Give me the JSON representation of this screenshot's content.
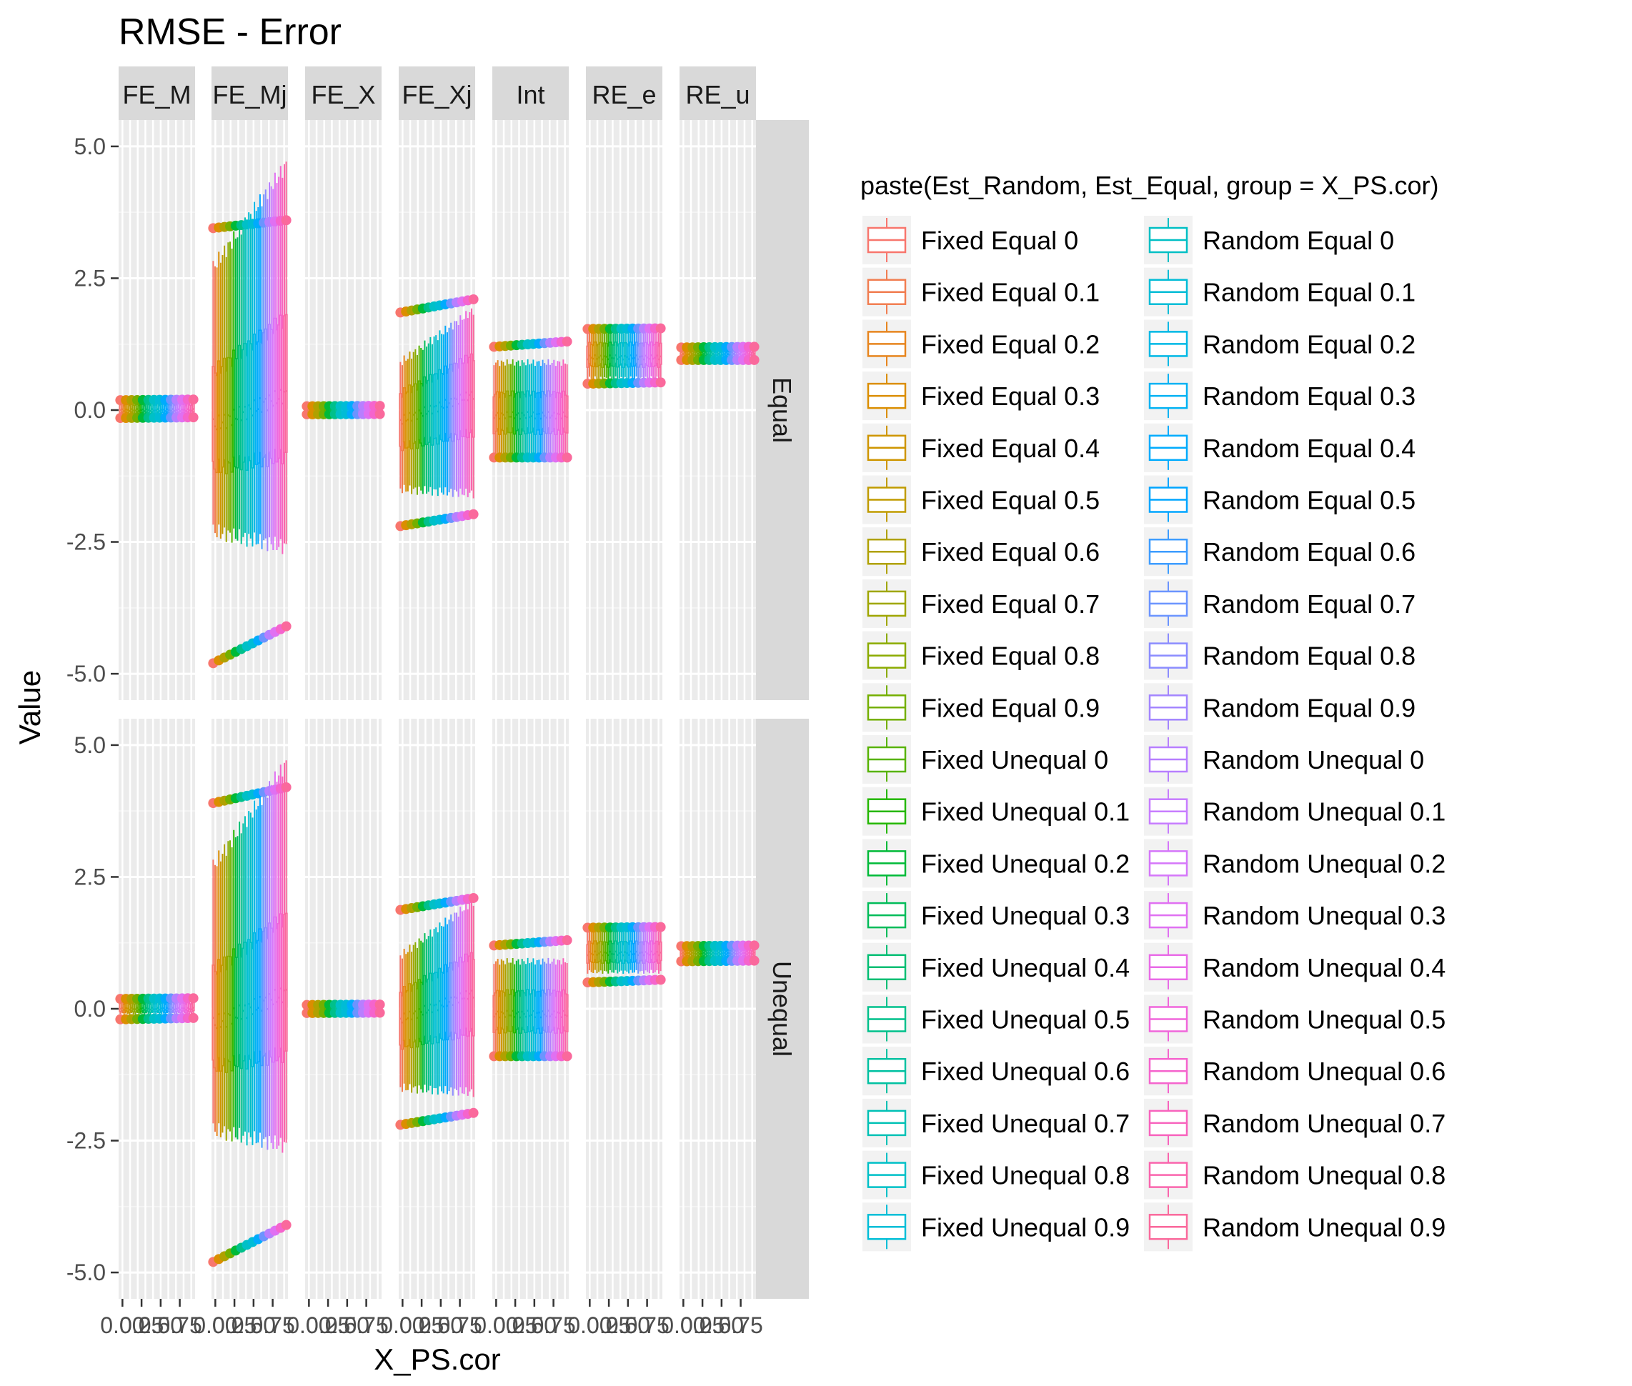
{
  "chart_data": {
    "type": "boxplot",
    "title": "RMSE - Error",
    "xlabel": "X_PS.cor",
    "ylabel": "Value",
    "ylim": [
      -5.5,
      5.5
    ],
    "y_ticks": [
      {
        "value": 5.0,
        "label": "5.0"
      },
      {
        "value": 2.5,
        "label": "2.5"
      },
      {
        "value": 0.0,
        "label": "0.0"
      },
      {
        "value": -2.5,
        "label": "-2.5"
      },
      {
        "value": -5.0,
        "label": "-5.0"
      }
    ],
    "x_tick_labels": [
      "0.00",
      "0.25",
      "0.50",
      "0.75"
    ],
    "x_values": [
      0.0,
      0.1,
      0.2,
      0.3,
      0.4,
      0.5,
      0.6,
      0.7,
      0.8,
      0.9
    ],
    "x_domain": [
      -0.05,
      0.95
    ],
    "grid": true,
    "legend_position": "right",
    "facet_columns": [
      "FE_M",
      "FE_Mj",
      "FE_X",
      "FE_Xj",
      "Int",
      "RE_e",
      "RE_u"
    ],
    "facet_rows": [
      "Equal",
      "Unequal"
    ],
    "legend": {
      "title": "paste(Est_Random, Est_Equal, group = X_PS.cor)",
      "entries": [
        {
          "label": "Fixed Equal 0",
          "color": "#F8766D"
        },
        {
          "label": "Fixed Equal 0.1",
          "color": "#F17D50"
        },
        {
          "label": "Fixed Equal 0.2",
          "color": "#E7851E"
        },
        {
          "label": "Fixed Equal 0.3",
          "color": "#DB8E00"
        },
        {
          "label": "Fixed Equal 0.4",
          "color": "#CE9500"
        },
        {
          "label": "Fixed Equal 0.5",
          "color": "#C09B00"
        },
        {
          "label": "Fixed Equal 0.6",
          "color": "#B0A100"
        },
        {
          "label": "Fixed Equal 0.7",
          "color": "#9FA600"
        },
        {
          "label": "Fixed Equal 0.8",
          "color": "#8BAB00"
        },
        {
          "label": "Fixed Equal 0.9",
          "color": "#74AF00"
        },
        {
          "label": "Fixed Unequal 0",
          "color": "#57B300"
        },
        {
          "label": "Fixed Unequal 0.1",
          "color": "#24B700"
        },
        {
          "label": "Fixed Unequal 0.2",
          "color": "#00BA38"
        },
        {
          "label": "Fixed Unequal 0.3",
          "color": "#00BC59"
        },
        {
          "label": "Fixed Unequal 0.4",
          "color": "#00BE73"
        },
        {
          "label": "Fixed Unequal 0.5",
          "color": "#00C08B"
        },
        {
          "label": "Fixed Unequal 0.6",
          "color": "#00C1A1"
        },
        {
          "label": "Fixed Unequal 0.7",
          "color": "#00C1B5"
        },
        {
          "label": "Fixed Unequal 0.8",
          "color": "#00C0C7"
        },
        {
          "label": "Fixed Unequal 0.9",
          "color": "#00BED7"
        },
        {
          "label": "Random Equal 0",
          "color": "#00BFC4"
        },
        {
          "label": "Random Equal 0.1",
          "color": "#00BCD6"
        },
        {
          "label": "Random Equal 0.2",
          "color": "#00B8E5"
        },
        {
          "label": "Random Equal 0.3",
          "color": "#00B2F3"
        },
        {
          "label": "Random Equal 0.4",
          "color": "#00ABFD"
        },
        {
          "label": "Random Equal 0.5",
          "color": "#00A5FF"
        },
        {
          "label": "Random Equal 0.6",
          "color": "#3D9CFF"
        },
        {
          "label": "Random Equal 0.7",
          "color": "#6B94FF"
        },
        {
          "label": "Random Equal 0.8",
          "color": "#8B8CFF"
        },
        {
          "label": "Random Equal 0.9",
          "color": "#A385FF"
        },
        {
          "label": "Random Unequal 0",
          "color": "#B77FFF"
        },
        {
          "label": "Random Unequal 0.1",
          "color": "#C77CFF"
        },
        {
          "label": "Random Unequal 0.2",
          "color": "#D576FA"
        },
        {
          "label": "Random Unequal 0.3",
          "color": "#E070F2"
        },
        {
          "label": "Random Unequal 0.4",
          "color": "#E96BE7"
        },
        {
          "label": "Random Unequal 0.5",
          "color": "#F066DB"
        },
        {
          "label": "Random Unequal 0.6",
          "color": "#F564CD"
        },
        {
          "label": "Random Unequal 0.7",
          "color": "#F863BD"
        },
        {
          "label": "Random Unequal 0.8",
          "color": "#FA65AD"
        },
        {
          "label": "Random Unequal 0.9",
          "color": "#FA699C"
        }
      ]
    },
    "panels": [
      {
        "facet": "FE_M",
        "row": "Equal",
        "lower_whisker": -0.1,
        "q1": -0.05,
        "median": 0.0,
        "q3": 0.1,
        "upper_whisker": 0.15,
        "outlier_low": -0.15,
        "outlier_high": 0.2
      },
      {
        "facet": "FE_Mj",
        "row": "Equal",
        "lower_whisker": -2.0,
        "q1": -0.8,
        "median": 0.0,
        "q3": 1.0,
        "upper_whisker": 3.0,
        "outlier_low": -4.8,
        "outlier_high": 3.6,
        "trend": [
          -0.3,
          0.3
        ]
      },
      {
        "facet": "FE_X",
        "row": "Equal",
        "lower_whisker": -0.06,
        "q1": -0.03,
        "median": 0.0,
        "q3": 0.02,
        "upper_whisker": 0.05,
        "outlier_low": -0.08,
        "outlier_high": 0.08
      },
      {
        "facet": "FE_Xj",
        "row": "Equal",
        "lower_whisker": -1.3,
        "q1": -0.5,
        "median": 0.0,
        "q3": 0.5,
        "upper_whisker": 1.1,
        "outlier_low": -2.2,
        "outlier_high": 2.1,
        "trend": [
          -0.2,
          0.3
        ]
      },
      {
        "facet": "Int",
        "row": "Equal",
        "lower_whisker": -0.9,
        "q1": -0.4,
        "median": -0.1,
        "q3": 0.3,
        "upper_whisker": 0.9,
        "outlier_low": -0.9,
        "outlier_high": 1.3
      },
      {
        "facet": "RE_e",
        "row": "Equal",
        "lower_whisker": 0.6,
        "q1": 0.85,
        "median": 1.0,
        "q3": 1.25,
        "upper_whisker": 1.5,
        "outlier_low": 0.5,
        "outlier_high": 1.55
      },
      {
        "facet": "RE_u",
        "row": "Equal",
        "lower_whisker": 0.95,
        "q1": 1.0,
        "median": 1.05,
        "q3": 1.1,
        "upper_whisker": 1.15,
        "outlier_low": 0.95,
        "outlier_high": 1.2
      },
      {
        "facet": "FE_M",
        "row": "Unequal",
        "lower_whisker": -0.1,
        "q1": -0.05,
        "median": 0.0,
        "q3": 0.1,
        "upper_whisker": 0.15,
        "outlier_low": -0.2,
        "outlier_high": 0.2
      },
      {
        "facet": "FE_Mj",
        "row": "Unequal",
        "lower_whisker": -2.0,
        "q1": -0.8,
        "median": 0.0,
        "q3": 1.0,
        "upper_whisker": 3.0,
        "outlier_low": -4.8,
        "outlier_high": 4.2,
        "trend": [
          -0.3,
          0.3
        ]
      },
      {
        "facet": "FE_X",
        "row": "Unequal",
        "lower_whisker": -0.06,
        "q1": -0.03,
        "median": 0.0,
        "q3": 0.02,
        "upper_whisker": 0.05,
        "outlier_low": -0.08,
        "outlier_high": 0.08
      },
      {
        "facet": "FE_Xj",
        "row": "Unequal",
        "lower_whisker": -1.3,
        "q1": -0.5,
        "median": 0.0,
        "q3": 0.5,
        "upper_whisker": 1.2,
        "outlier_low": -2.2,
        "outlier_high": 2.1,
        "trend": [
          -0.2,
          0.3
        ]
      },
      {
        "facet": "Int",
        "row": "Unequal",
        "lower_whisker": -0.9,
        "q1": -0.4,
        "median": -0.1,
        "q3": 0.3,
        "upper_whisker": 0.9,
        "outlier_low": -0.9,
        "outlier_high": 1.3
      },
      {
        "facet": "RE_e",
        "row": "Unequal",
        "lower_whisker": 0.7,
        "q1": 0.9,
        "median": 1.05,
        "q3": 1.25,
        "upper_whisker": 1.5,
        "outlier_low": 0.5,
        "outlier_high": 1.55
      },
      {
        "facet": "RE_u",
        "row": "Unequal",
        "lower_whisker": 0.95,
        "q1": 1.0,
        "median": 1.05,
        "q3": 1.1,
        "upper_whisker": 1.15,
        "outlier_low": 0.9,
        "outlier_high": 1.2
      }
    ]
  }
}
